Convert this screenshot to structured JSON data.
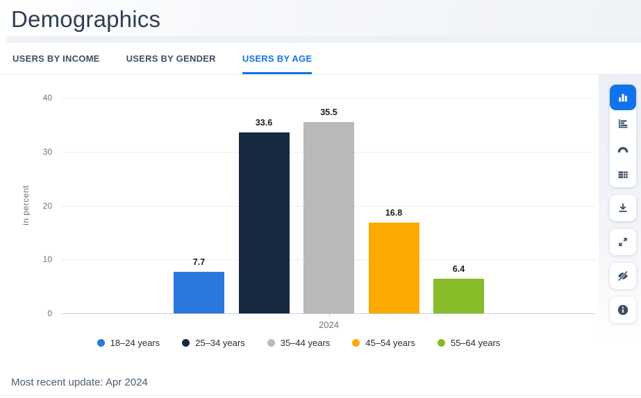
{
  "theme": {
    "accent": "#1173e9",
    "icon_color": "#3a5066"
  },
  "header": {
    "title": "Demographics"
  },
  "tabs": {
    "items": [
      {
        "label": "USERS BY INCOME",
        "active": false
      },
      {
        "label": "USERS BY GENDER",
        "active": false
      },
      {
        "label": "USERS BY AGE",
        "active": true
      }
    ]
  },
  "chart_data": {
    "type": "bar",
    "title": "Users by age",
    "categories": [
      "18–24 years",
      "25–34 years",
      "35–44 years",
      "45–54 years",
      "55–64 years"
    ],
    "values": [
      7.7,
      33.6,
      35.5,
      16.8,
      6.4
    ],
    "series_colors": [
      "#2a78dd",
      "#16293e",
      "#b9b9b9",
      "#fcaa01",
      "#87bb27"
    ],
    "x_tick_label": "2024",
    "xlabel": "",
    "ylabel": "in percent",
    "ylim": [
      0,
      40
    ],
    "yticks": [
      0,
      10,
      20,
      30,
      40
    ],
    "grid": true,
    "value_labels": true,
    "legend_position": "bottom"
  },
  "toolbar": {
    "chart_type_buttons": [
      "column-chart",
      "bar-chart",
      "gauge-chart",
      "table"
    ],
    "active_index": 0,
    "action_buttons": [
      "download",
      "fullscreen",
      "hide",
      "info"
    ]
  },
  "footer": {
    "update_text": "Most recent update: Apr 2024"
  }
}
